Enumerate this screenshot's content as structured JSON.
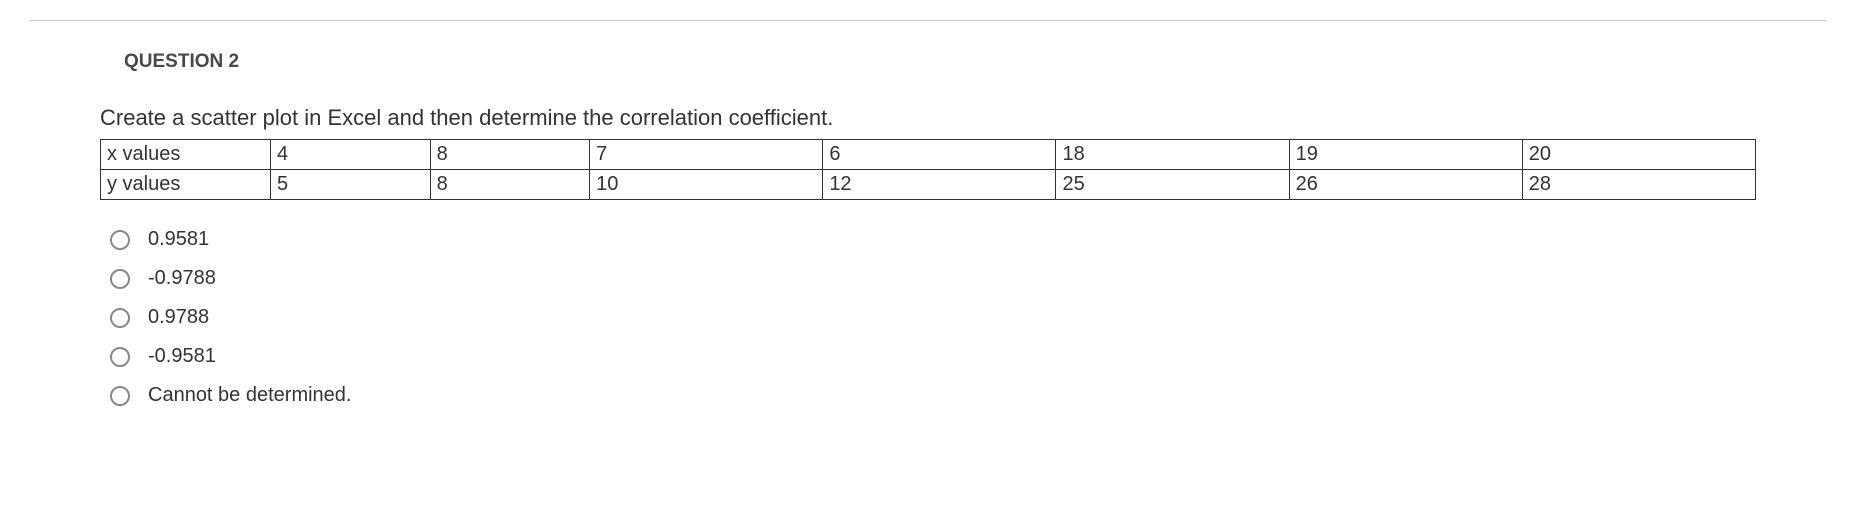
{
  "question": {
    "header": "QUESTION 2",
    "prompt": "Create a scatter plot in Excel and then determine the correlation coefficient."
  },
  "table": {
    "rows": [
      {
        "label": "x values",
        "cells": [
          "4",
          "8",
          "7",
          "6",
          "18",
          "19",
          "20"
        ]
      },
      {
        "label": "y values",
        "cells": [
          "5",
          "8",
          "10",
          "12",
          "25",
          "26",
          "28"
        ]
      }
    ],
    "border_color": "#333333",
    "font_size": 20
  },
  "options": [
    {
      "label": "0.9581"
    },
    {
      "label": "-0.9788"
    },
    {
      "label": "0.9788"
    },
    {
      "label": "-0.9581"
    },
    {
      "label": "Cannot be determined."
    }
  ],
  "colors": {
    "text": "#333333",
    "header_text": "#484848",
    "top_rule": "#cccccc",
    "radio_border": "#888888",
    "background": "#ffffff"
  }
}
